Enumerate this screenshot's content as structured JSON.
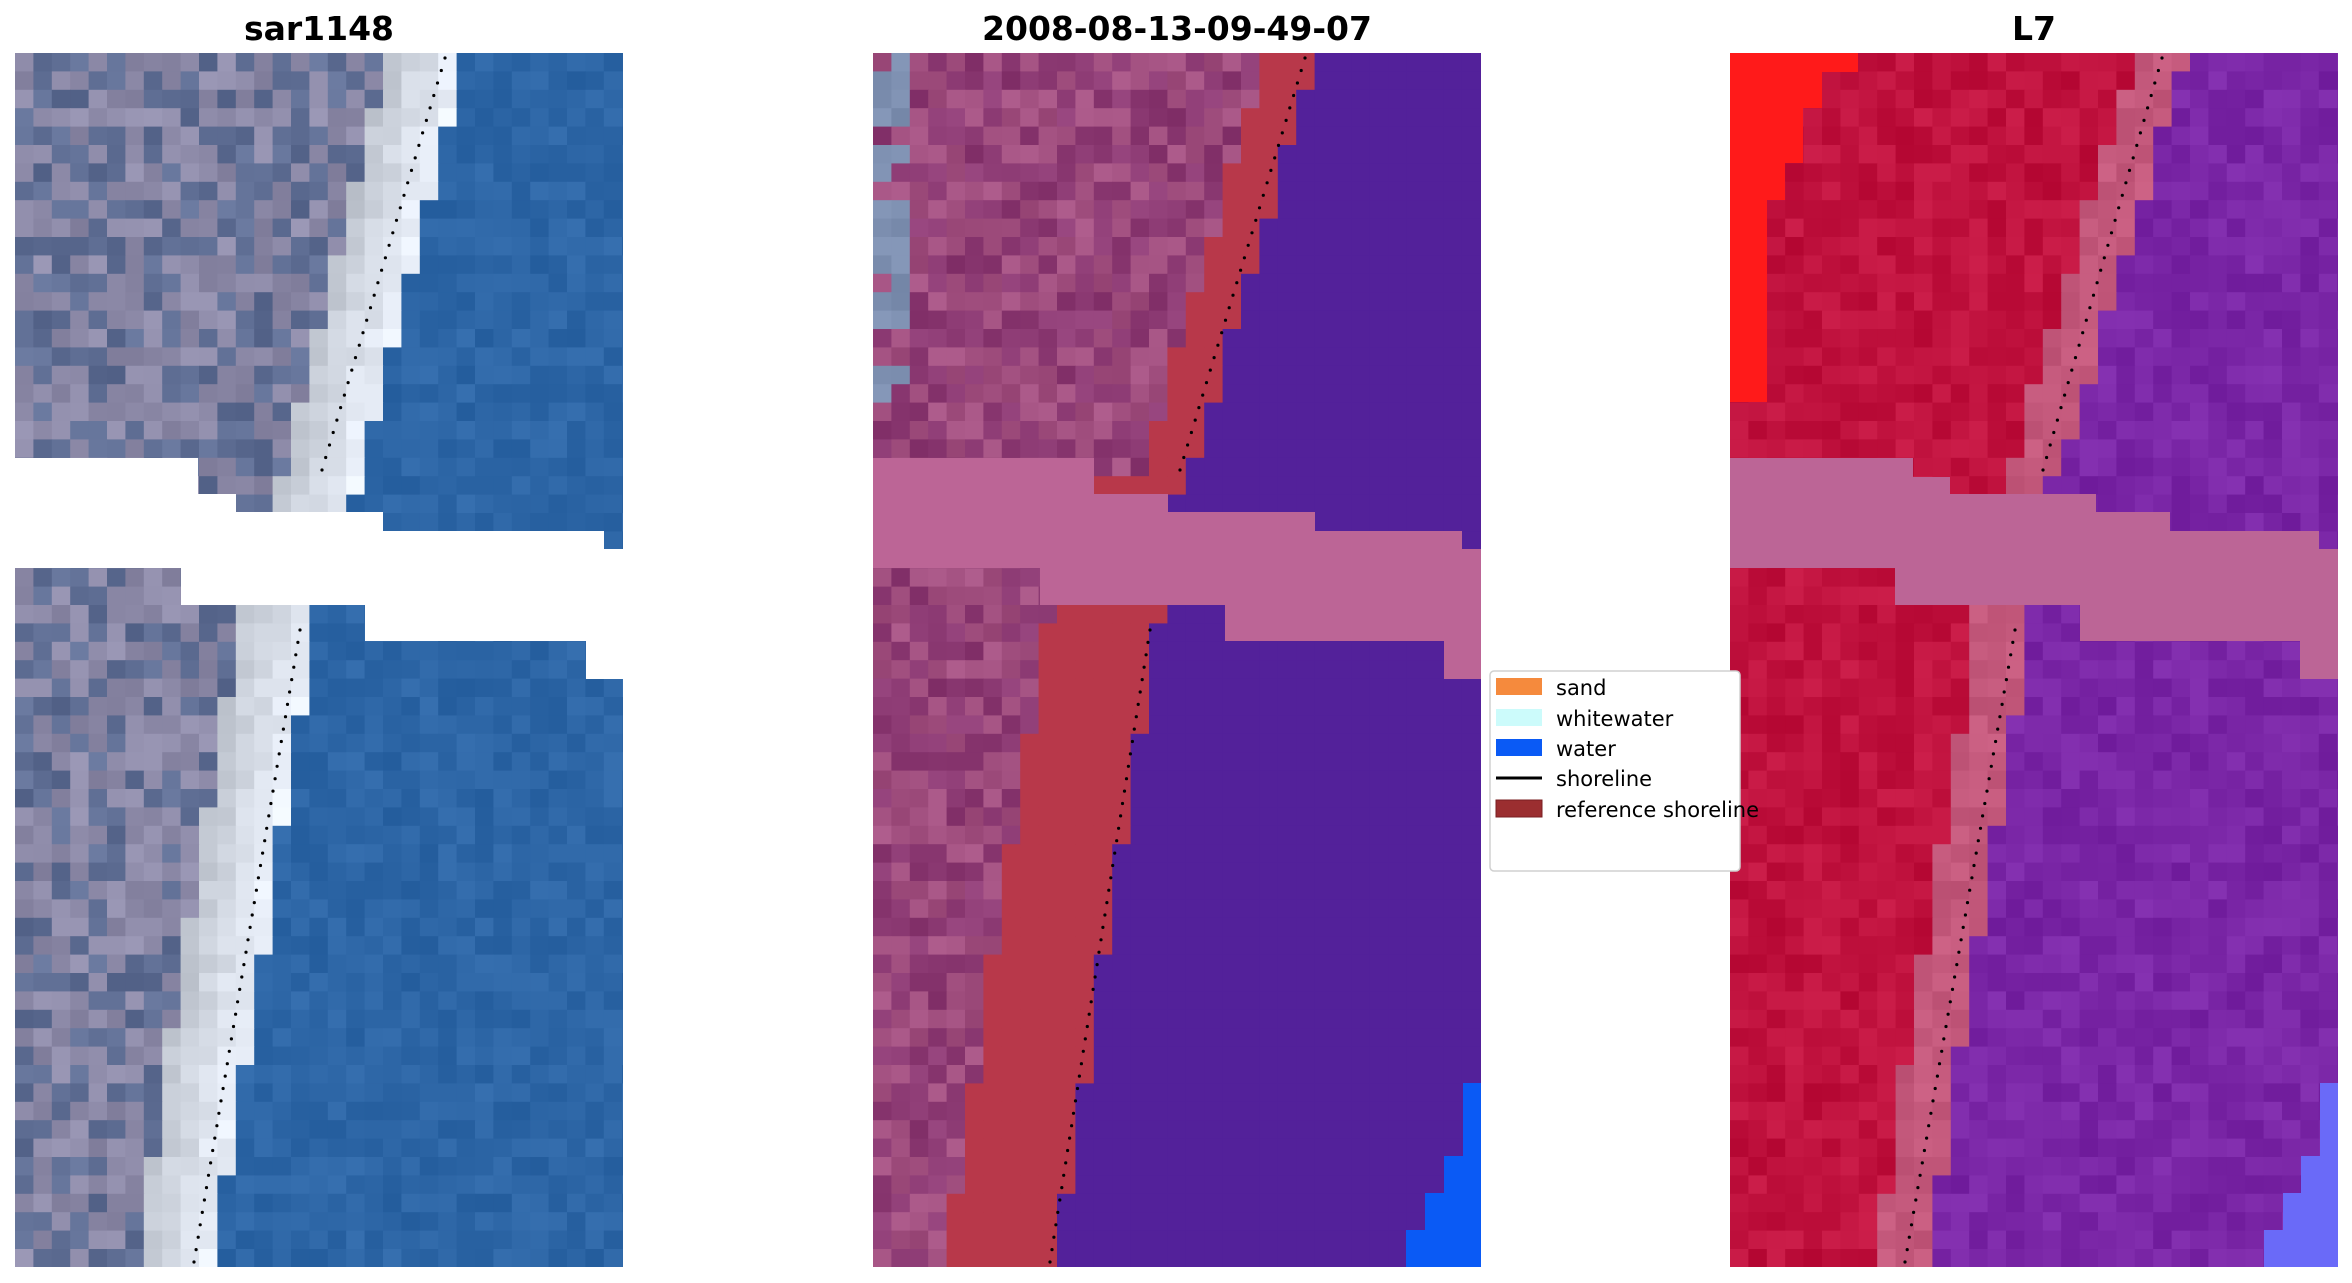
{
  "figure": {
    "panels": [
      {
        "id": "rgb",
        "title": "sar1148"
      },
      {
        "id": "classified",
        "title": "2008-08-13-09-49-07"
      },
      {
        "id": "mndwi",
        "title": "L7"
      }
    ]
  },
  "legend": {
    "items": [
      {
        "label": "sand",
        "color": "#f58a3d",
        "kind": "patch"
      },
      {
        "label": "whitewater",
        "color": "#ccfbfb",
        "kind": "patch"
      },
      {
        "label": "water",
        "color": "#0a5af5",
        "kind": "patch"
      },
      {
        "label": "shoreline",
        "color": "#000000",
        "kind": "line"
      },
      {
        "label": "reference shoreline",
        "color": "#9b2e30",
        "kind": "patch"
      }
    ]
  },
  "colors": {
    "rgb_land": "#8d8aa8",
    "rgb_land_dark": "#5f6e94",
    "rgb_whitewater": "#e8eef8",
    "rgb_water": "#2d66a6",
    "class_land": "#8c3a73",
    "class_land_light": "#a25080",
    "class_sand_ref": "#b8384a",
    "class_water": "#53219a",
    "class_pink_band": "#bc6596",
    "class_blue": "#0a5af5",
    "ndwi_red": "#ff1a1a",
    "ndwi_crimson": "#c0123e",
    "ndwi_pink": "#c4597c",
    "ndwi_purple": "#7a26a6",
    "ndwi_light_blue": "#6a6af8"
  }
}
